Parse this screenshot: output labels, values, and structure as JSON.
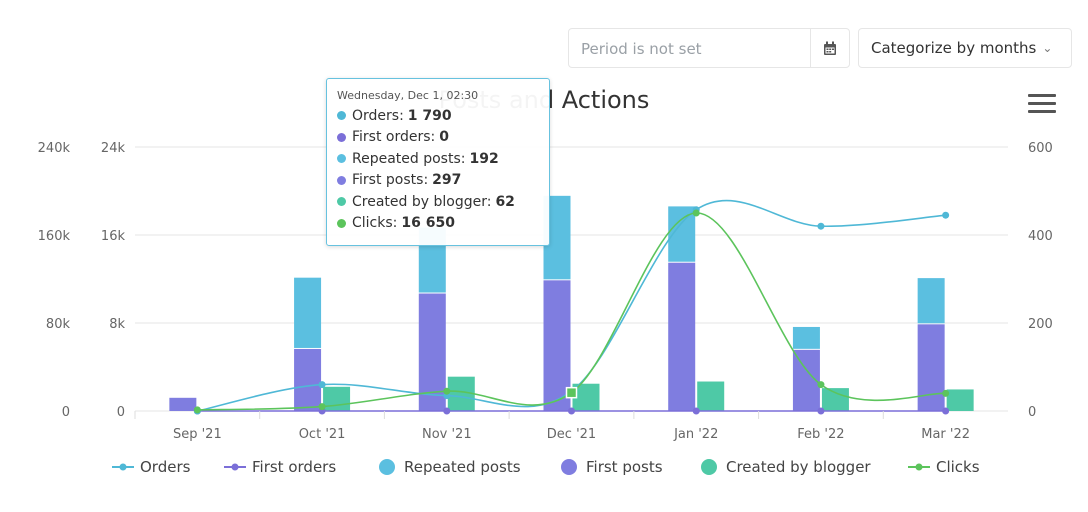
{
  "controls": {
    "period_placeholder": "Period is not set",
    "categorize_label": "Categorize by months"
  },
  "chart_data": {
    "type": "bar",
    "title": "Posts and Actions",
    "categories": [
      "Sep '21",
      "Oct '21",
      "Nov '21",
      "Dec '21",
      "Jan '22",
      "Feb '22",
      "Mar '22"
    ],
    "axes": {
      "y_left_outer": {
        "ticks": [
          "0",
          "80k",
          "160k",
          "240k"
        ],
        "ylim": [
          0,
          240000
        ]
      },
      "y_left_inner": {
        "ticks": [
          "0",
          "8k",
          "16k",
          "24k"
        ],
        "ylim": [
          0,
          24000
        ]
      },
      "y_right": {
        "ticks": [
          "0",
          "200",
          "400",
          "600"
        ],
        "ylim": [
          0,
          600
        ]
      }
    },
    "series": [
      {
        "name": "Orders",
        "type": "spline",
        "color": "#4fb8d6",
        "axis": "y_left_inner",
        "values": [
          0,
          2400,
          1400,
          1790,
          18300,
          16800,
          17800
        ]
      },
      {
        "name": "First orders",
        "type": "spline",
        "color": "#7b6fd8",
        "axis": "y_left_inner",
        "values": [
          0,
          0,
          0,
          0,
          0,
          0,
          0
        ]
      },
      {
        "name": "Repeated posts",
        "type": "stacked-bar",
        "color": "#5bbfe0",
        "axis": "y_right",
        "values": [
          0,
          162,
          150,
          192,
          128,
          52,
          105
        ]
      },
      {
        "name": "First posts",
        "type": "stacked-bar",
        "color": "#7f7de0",
        "axis": "y_right",
        "values": [
          30,
          141,
          267,
          297,
          337,
          139,
          197
        ]
      },
      {
        "name": "Created by blogger",
        "type": "bar",
        "color": "#4ec9a6",
        "axis": "y_right",
        "values": [
          0,
          55,
          78,
          62,
          67,
          52,
          49
        ]
      },
      {
        "name": "Clicks",
        "type": "spline",
        "color": "#5cc45c",
        "axis": "y_left_outer",
        "values": [
          1000,
          4000,
          18000,
          16650,
          180000,
          24000,
          16000
        ]
      }
    ],
    "legend": [
      "Orders",
      "First orders",
      "Repeated posts",
      "First posts",
      "Created by blogger",
      "Clicks"
    ],
    "tooltip": {
      "header": "Wednesday, Dec 1, 02:30",
      "rows": [
        {
          "label": "Orders",
          "value": "1 790",
          "color": "#4fb8d6"
        },
        {
          "label": "First orders",
          "value": "0",
          "color": "#7b6fd8"
        },
        {
          "label": "Repeated posts",
          "value": "192",
          "color": "#5bbfe0"
        },
        {
          "label": "First posts",
          "value": "297",
          "color": "#7f7de0"
        },
        {
          "label": "Created by blogger",
          "value": "62",
          "color": "#4ec9a6"
        },
        {
          "label": "Clicks",
          "value": "16 650",
          "color": "#5cc45c"
        }
      ]
    }
  }
}
